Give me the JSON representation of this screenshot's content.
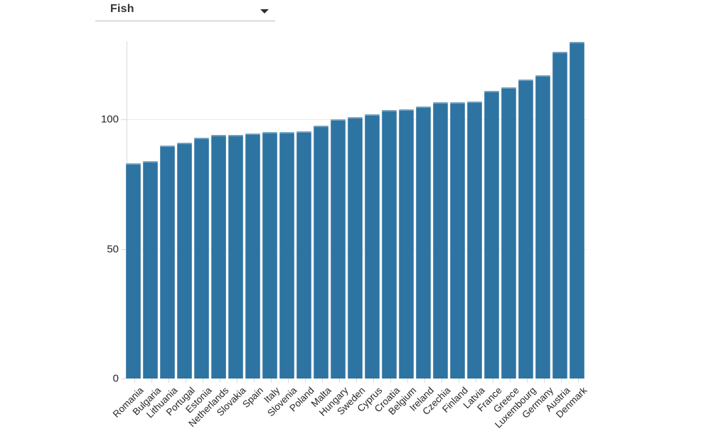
{
  "dropdown": {
    "value": "Fish",
    "caret_icon": "caret-down"
  },
  "chart_data": {
    "type": "bar",
    "title": "",
    "xlabel": "",
    "ylabel": "",
    "categories": [
      "Romania",
      "Bulgaria",
      "Lithuania",
      "Portugal",
      "Estonia",
      "Netherlands",
      "Slovakia",
      "Spain",
      "Italy",
      "Slovenia",
      "Poland",
      "Malta",
      "Hungary",
      "Sweden",
      "Cyprus",
      "Croatia",
      "Belgium",
      "Ireland",
      "Czechia",
      "Finland",
      "Latvia",
      "France",
      "Greece",
      "Luxembourg",
      "Germany",
      "Austria",
      "Denmark"
    ],
    "values": [
      83,
      84,
      90,
      91,
      93,
      94,
      94,
      94.5,
      95,
      95,
      95.5,
      97.5,
      100,
      101,
      102,
      103.5,
      104,
      105,
      106.5,
      106.5,
      107,
      111,
      112.5,
      115.5,
      117,
      126,
      130
    ],
    "yticks": [
      0,
      50,
      100
    ],
    "ylim": [
      0,
      130.2
    ],
    "grid": true,
    "legend_position": "none",
    "colors": {
      "bar": "#2e74a2",
      "grid": "#ececec",
      "axis": "#d9d9d9",
      "tick_label": "#262626"
    }
  }
}
